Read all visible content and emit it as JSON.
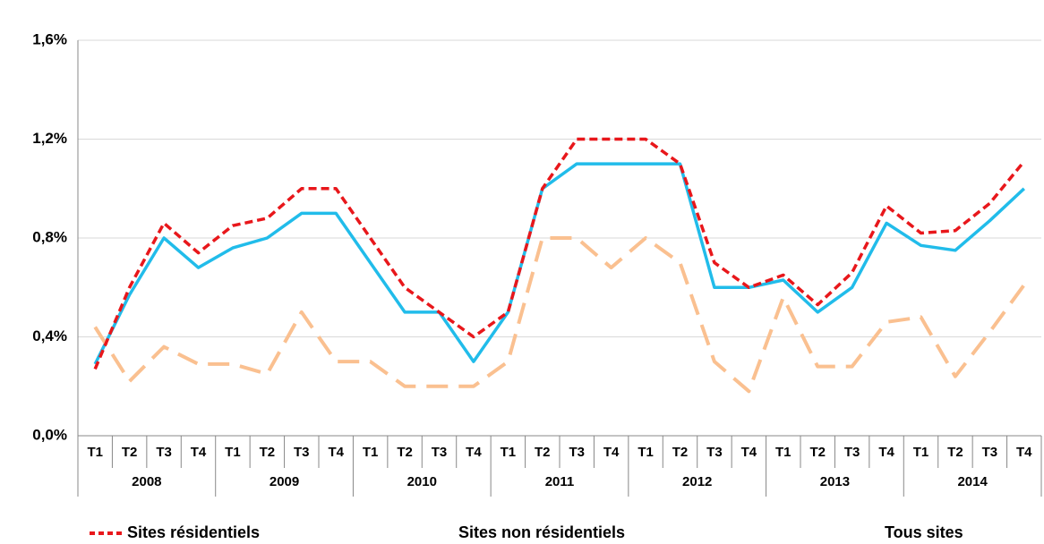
{
  "chart_data": {
    "type": "line",
    "categories": [
      "T1",
      "T2",
      "T3",
      "T4",
      "T1",
      "T2",
      "T3",
      "T4",
      "T1",
      "T2",
      "T3",
      "T4",
      "T1",
      "T2",
      "T3",
      "T4",
      "T1",
      "T2",
      "T3",
      "T4",
      "T1",
      "T2",
      "T3",
      "T4",
      "T1",
      "T2",
      "T3",
      "T4"
    ],
    "groups": [
      "2008",
      "2009",
      "2010",
      "2011",
      "2012",
      "2013",
      "2014"
    ],
    "series": [
      {
        "name": "Sites résidentiels",
        "color": "#e8171b",
        "dash": "short",
        "values": [
          0.27,
          0.6,
          0.86,
          0.74,
          0.85,
          0.88,
          1.0,
          1.0,
          0.8,
          0.6,
          0.5,
          0.4,
          0.5,
          1.0,
          1.2,
          1.2,
          1.2,
          1.1,
          0.7,
          0.6,
          0.65,
          0.53,
          0.66,
          0.93,
          0.82,
          0.83,
          0.94,
          1.11
        ]
      },
      {
        "name": "Sites non résidentiels",
        "color": "#fac090",
        "dash": "long",
        "values": [
          0.44,
          0.22,
          0.36,
          0.29,
          0.29,
          0.25,
          0.5,
          0.3,
          0.3,
          0.2,
          0.2,
          0.2,
          0.3,
          0.8,
          0.8,
          0.68,
          0.8,
          0.7,
          0.3,
          0.18,
          0.56,
          0.28,
          0.28,
          0.46,
          0.48,
          0.24,
          0.42,
          0.61
        ]
      },
      {
        "name": "Tous sites",
        "color": "#21bcea",
        "dash": "solid",
        "values": [
          0.29,
          0.57,
          0.8,
          0.68,
          0.76,
          0.8,
          0.9,
          0.9,
          0.7,
          0.5,
          0.5,
          0.3,
          0.5,
          1.0,
          1.1,
          1.1,
          1.1,
          1.1,
          0.6,
          0.6,
          0.63,
          0.5,
          0.6,
          0.86,
          0.77,
          0.75,
          0.87,
          1.0
        ]
      }
    ],
    "ylim": [
      0,
      1.6
    ],
    "yticks": [
      {
        "value": 0,
        "label": "0,0%"
      },
      {
        "value": 0.4,
        "label": "0,4%"
      },
      {
        "value": 0.8,
        "label": "0,8%"
      },
      {
        "value": 1.2,
        "label": "1,2%"
      },
      {
        "value": 1.6,
        "label": "1,6%"
      }
    ],
    "grid": true
  }
}
